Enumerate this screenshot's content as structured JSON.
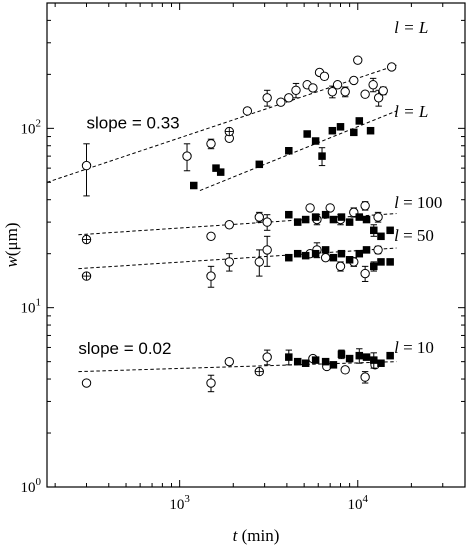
{
  "chart_data": {
    "type": "scatter",
    "xscale": "log",
    "yscale": "log",
    "xlim": [
      180,
      40000
    ],
    "ylim": [
      1,
      500
    ],
    "grid": false,
    "legend": "none",
    "xlabel": {
      "italic": "t",
      "rest": " (min)"
    },
    "ylabel": {
      "italic": "w",
      "rest": "(μm)"
    },
    "x_ticks": [
      {
        "value": 1000,
        "base": "10",
        "exp": "3"
      },
      {
        "value": 10000,
        "base": "10",
        "exp": "4"
      }
    ],
    "y_ticks": [
      {
        "value": 1,
        "base": "10",
        "exp": "0"
      },
      {
        "value": 10,
        "base": "10",
        "exp": "1"
      },
      {
        "value": 100,
        "base": "10",
        "exp": "2"
      }
    ],
    "annotations": [
      {
        "id": "slope-033",
        "text": "slope = 0.33",
        "x": 300,
        "y": 100,
        "font": "sans"
      },
      {
        "id": "slope-002",
        "text": "slope = 0.02",
        "x": 270,
        "y": 5.5,
        "font": "sans"
      }
    ],
    "fit_lines": [
      {
        "id": "fit-open-L",
        "x": [
          180,
          16500
        ],
        "y": [
          50,
          225
        ],
        "label": {
          "italic": "l",
          "rest": " = L",
          "x": 16000,
          "y": 340,
          "italic_rest": true
        }
      },
      {
        "id": "fit-filled-L",
        "x": [
          1300,
          16500
        ],
        "y": [
          45,
          125
        ],
        "label": {
          "italic": "l",
          "rest": " = L",
          "x": 16000,
          "y": 116,
          "italic_rest": true
        }
      },
      {
        "id": "fit-100",
        "x": [
          270,
          16500
        ],
        "y": [
          25.5,
          33.5
        ],
        "label": {
          "italic": "l",
          "rest": " = 100",
          "x": 16000,
          "y": 36
        }
      },
      {
        "id": "fit-50",
        "x": [
          270,
          16500
        ],
        "y": [
          16.5,
          21.5
        ],
        "label": {
          "italic": "l",
          "rest": " = 50",
          "x": 16000,
          "y": 23.5
        }
      },
      {
        "id": "fit-10",
        "x": [
          270,
          16500
        ],
        "y": [
          4.4,
          5.0
        ],
        "label": {
          "italic": "l",
          "rest": " = 10",
          "x": 16000,
          "y": 5.6
        }
      }
    ],
    "series": [
      {
        "marker": "open-circle",
        "points": [
          {
            "x": 300,
            "y": 62,
            "err": 20
          },
          {
            "x": 1100,
            "y": 70,
            "err": 12
          },
          {
            "x": 1500,
            "y": 82,
            "err": 5
          },
          {
            "x": 1900,
            "y": 88
          },
          {
            "x": 2400,
            "y": 125
          },
          {
            "x": 3100,
            "y": 148,
            "err": 15
          },
          {
            "x": 3700,
            "y": 140
          },
          {
            "x": 4100,
            "y": 148
          },
          {
            "x": 4500,
            "y": 163,
            "err": 15
          },
          {
            "x": 5200,
            "y": 175
          },
          {
            "x": 5600,
            "y": 168
          },
          {
            "x": 6100,
            "y": 205
          },
          {
            "x": 6500,
            "y": 195,
            "err": 8
          },
          {
            "x": 7200,
            "y": 160,
            "err": 12
          },
          {
            "x": 7700,
            "y": 175
          },
          {
            "x": 8500,
            "y": 160,
            "err": 10
          },
          {
            "x": 9500,
            "y": 185
          },
          {
            "x": 10000,
            "y": 240
          },
          {
            "x": 11000,
            "y": 155
          },
          {
            "x": 12200,
            "y": 175,
            "err": 15
          },
          {
            "x": 13100,
            "y": 148,
            "err": 15
          },
          {
            "x": 13900,
            "y": 162,
            "err": 8
          },
          {
            "x": 15500,
            "y": 220
          },
          {
            "x": 1500,
            "y": 25
          },
          {
            "x": 1900,
            "y": 29
          },
          {
            "x": 2800,
            "y": 32,
            "err": 2
          },
          {
            "x": 3100,
            "y": 30,
            "err": 3
          },
          {
            "x": 5400,
            "y": 36
          },
          {
            "x": 5900,
            "y": 31,
            "err": 2
          },
          {
            "x": 7000,
            "y": 36
          },
          {
            "x": 8000,
            "y": 31,
            "err": 2
          },
          {
            "x": 9500,
            "y": 34,
            "err": 2
          },
          {
            "x": 11000,
            "y": 37,
            "err": 2
          },
          {
            "x": 13000,
            "y": 32,
            "err": 2
          },
          {
            "x": 1500,
            "y": 15,
            "err": 2
          },
          {
            "x": 1900,
            "y": 18,
            "err": 2
          },
          {
            "x": 2800,
            "y": 18,
            "err": 3
          },
          {
            "x": 3100,
            "y": 21,
            "err": 4
          },
          {
            "x": 5400,
            "y": 20
          },
          {
            "x": 5900,
            "y": 21,
            "err": 2
          },
          {
            "x": 6600,
            "y": 19
          },
          {
            "x": 8000,
            "y": 17,
            "err": 1
          },
          {
            "x": 9500,
            "y": 18,
            "err": 1
          },
          {
            "x": 11000,
            "y": 15.5,
            "err": 1.5
          },
          {
            "x": 13000,
            "y": 21,
            "err": 1
          },
          {
            "x": 300,
            "y": 3.8
          },
          {
            "x": 1500,
            "y": 3.8,
            "err": 0.4
          },
          {
            "x": 1900,
            "y": 5.0
          },
          {
            "x": 3100,
            "y": 5.3,
            "err": 0.5
          },
          {
            "x": 5600,
            "y": 5.2
          },
          {
            "x": 6700,
            "y": 4.7
          },
          {
            "x": 8500,
            "y": 4.5
          },
          {
            "x": 11000,
            "y": 4.1,
            "err": 0.3
          },
          {
            "x": 12500,
            "y": 4.8
          }
        ]
      },
      {
        "marker": "crossed-circle",
        "points": [
          {
            "x": 300,
            "y": 24
          },
          {
            "x": 300,
            "y": 15
          },
          {
            "x": 1900,
            "y": 96
          },
          {
            "x": 2800,
            "y": 4.4
          }
        ]
      },
      {
        "marker": "filled-square",
        "points": [
          {
            "x": 1200,
            "y": 48
          },
          {
            "x": 1600,
            "y": 60
          },
          {
            "x": 1700,
            "y": 57
          },
          {
            "x": 2800,
            "y": 63
          },
          {
            "x": 4100,
            "y": 75
          },
          {
            "x": 5200,
            "y": 93
          },
          {
            "x": 5800,
            "y": 85
          },
          {
            "x": 6300,
            "y": 70,
            "err": 8
          },
          {
            "x": 7200,
            "y": 97
          },
          {
            "x": 8000,
            "y": 102
          },
          {
            "x": 9500,
            "y": 95
          },
          {
            "x": 10200,
            "y": 110
          },
          {
            "x": 11800,
            "y": 97
          },
          {
            "x": 4100,
            "y": 33
          },
          {
            "x": 4600,
            "y": 30
          },
          {
            "x": 5100,
            "y": 31
          },
          {
            "x": 5800,
            "y": 32
          },
          {
            "x": 6600,
            "y": 33
          },
          {
            "x": 7300,
            "y": 31
          },
          {
            "x": 8100,
            "y": 32
          },
          {
            "x": 9000,
            "y": 30
          },
          {
            "x": 10200,
            "y": 32
          },
          {
            "x": 11200,
            "y": 31
          },
          {
            "x": 12300,
            "y": 27,
            "err": 2
          },
          {
            "x": 13500,
            "y": 25
          },
          {
            "x": 15200,
            "y": 27
          },
          {
            "x": 4100,
            "y": 19
          },
          {
            "x": 4600,
            "y": 20
          },
          {
            "x": 5100,
            "y": 19.5
          },
          {
            "x": 5800,
            "y": 20
          },
          {
            "x": 6600,
            "y": 21
          },
          {
            "x": 7300,
            "y": 19
          },
          {
            "x": 8100,
            "y": 20
          },
          {
            "x": 9000,
            "y": 18.5
          },
          {
            "x": 10200,
            "y": 20
          },
          {
            "x": 11200,
            "y": 21
          },
          {
            "x": 12300,
            "y": 17,
            "err": 1
          },
          {
            "x": 13500,
            "y": 18
          },
          {
            "x": 15200,
            "y": 18
          },
          {
            "x": 4100,
            "y": 5.3,
            "err": 0.5
          },
          {
            "x": 4600,
            "y": 5.0
          },
          {
            "x": 5100,
            "y": 4.9
          },
          {
            "x": 5800,
            "y": 5.1
          },
          {
            "x": 6600,
            "y": 5.0
          },
          {
            "x": 7300,
            "y": 4.8
          },
          {
            "x": 8100,
            "y": 5.5,
            "err": 0.3
          },
          {
            "x": 9000,
            "y": 5.2
          },
          {
            "x": 10200,
            "y": 5.4,
            "err": 0.5
          },
          {
            "x": 11200,
            "y": 5.3
          },
          {
            "x": 12300,
            "y": 5.1,
            "err": 0.5
          },
          {
            "x": 13500,
            "y": 4.9
          },
          {
            "x": 15200,
            "y": 5.4
          }
        ]
      }
    ]
  }
}
